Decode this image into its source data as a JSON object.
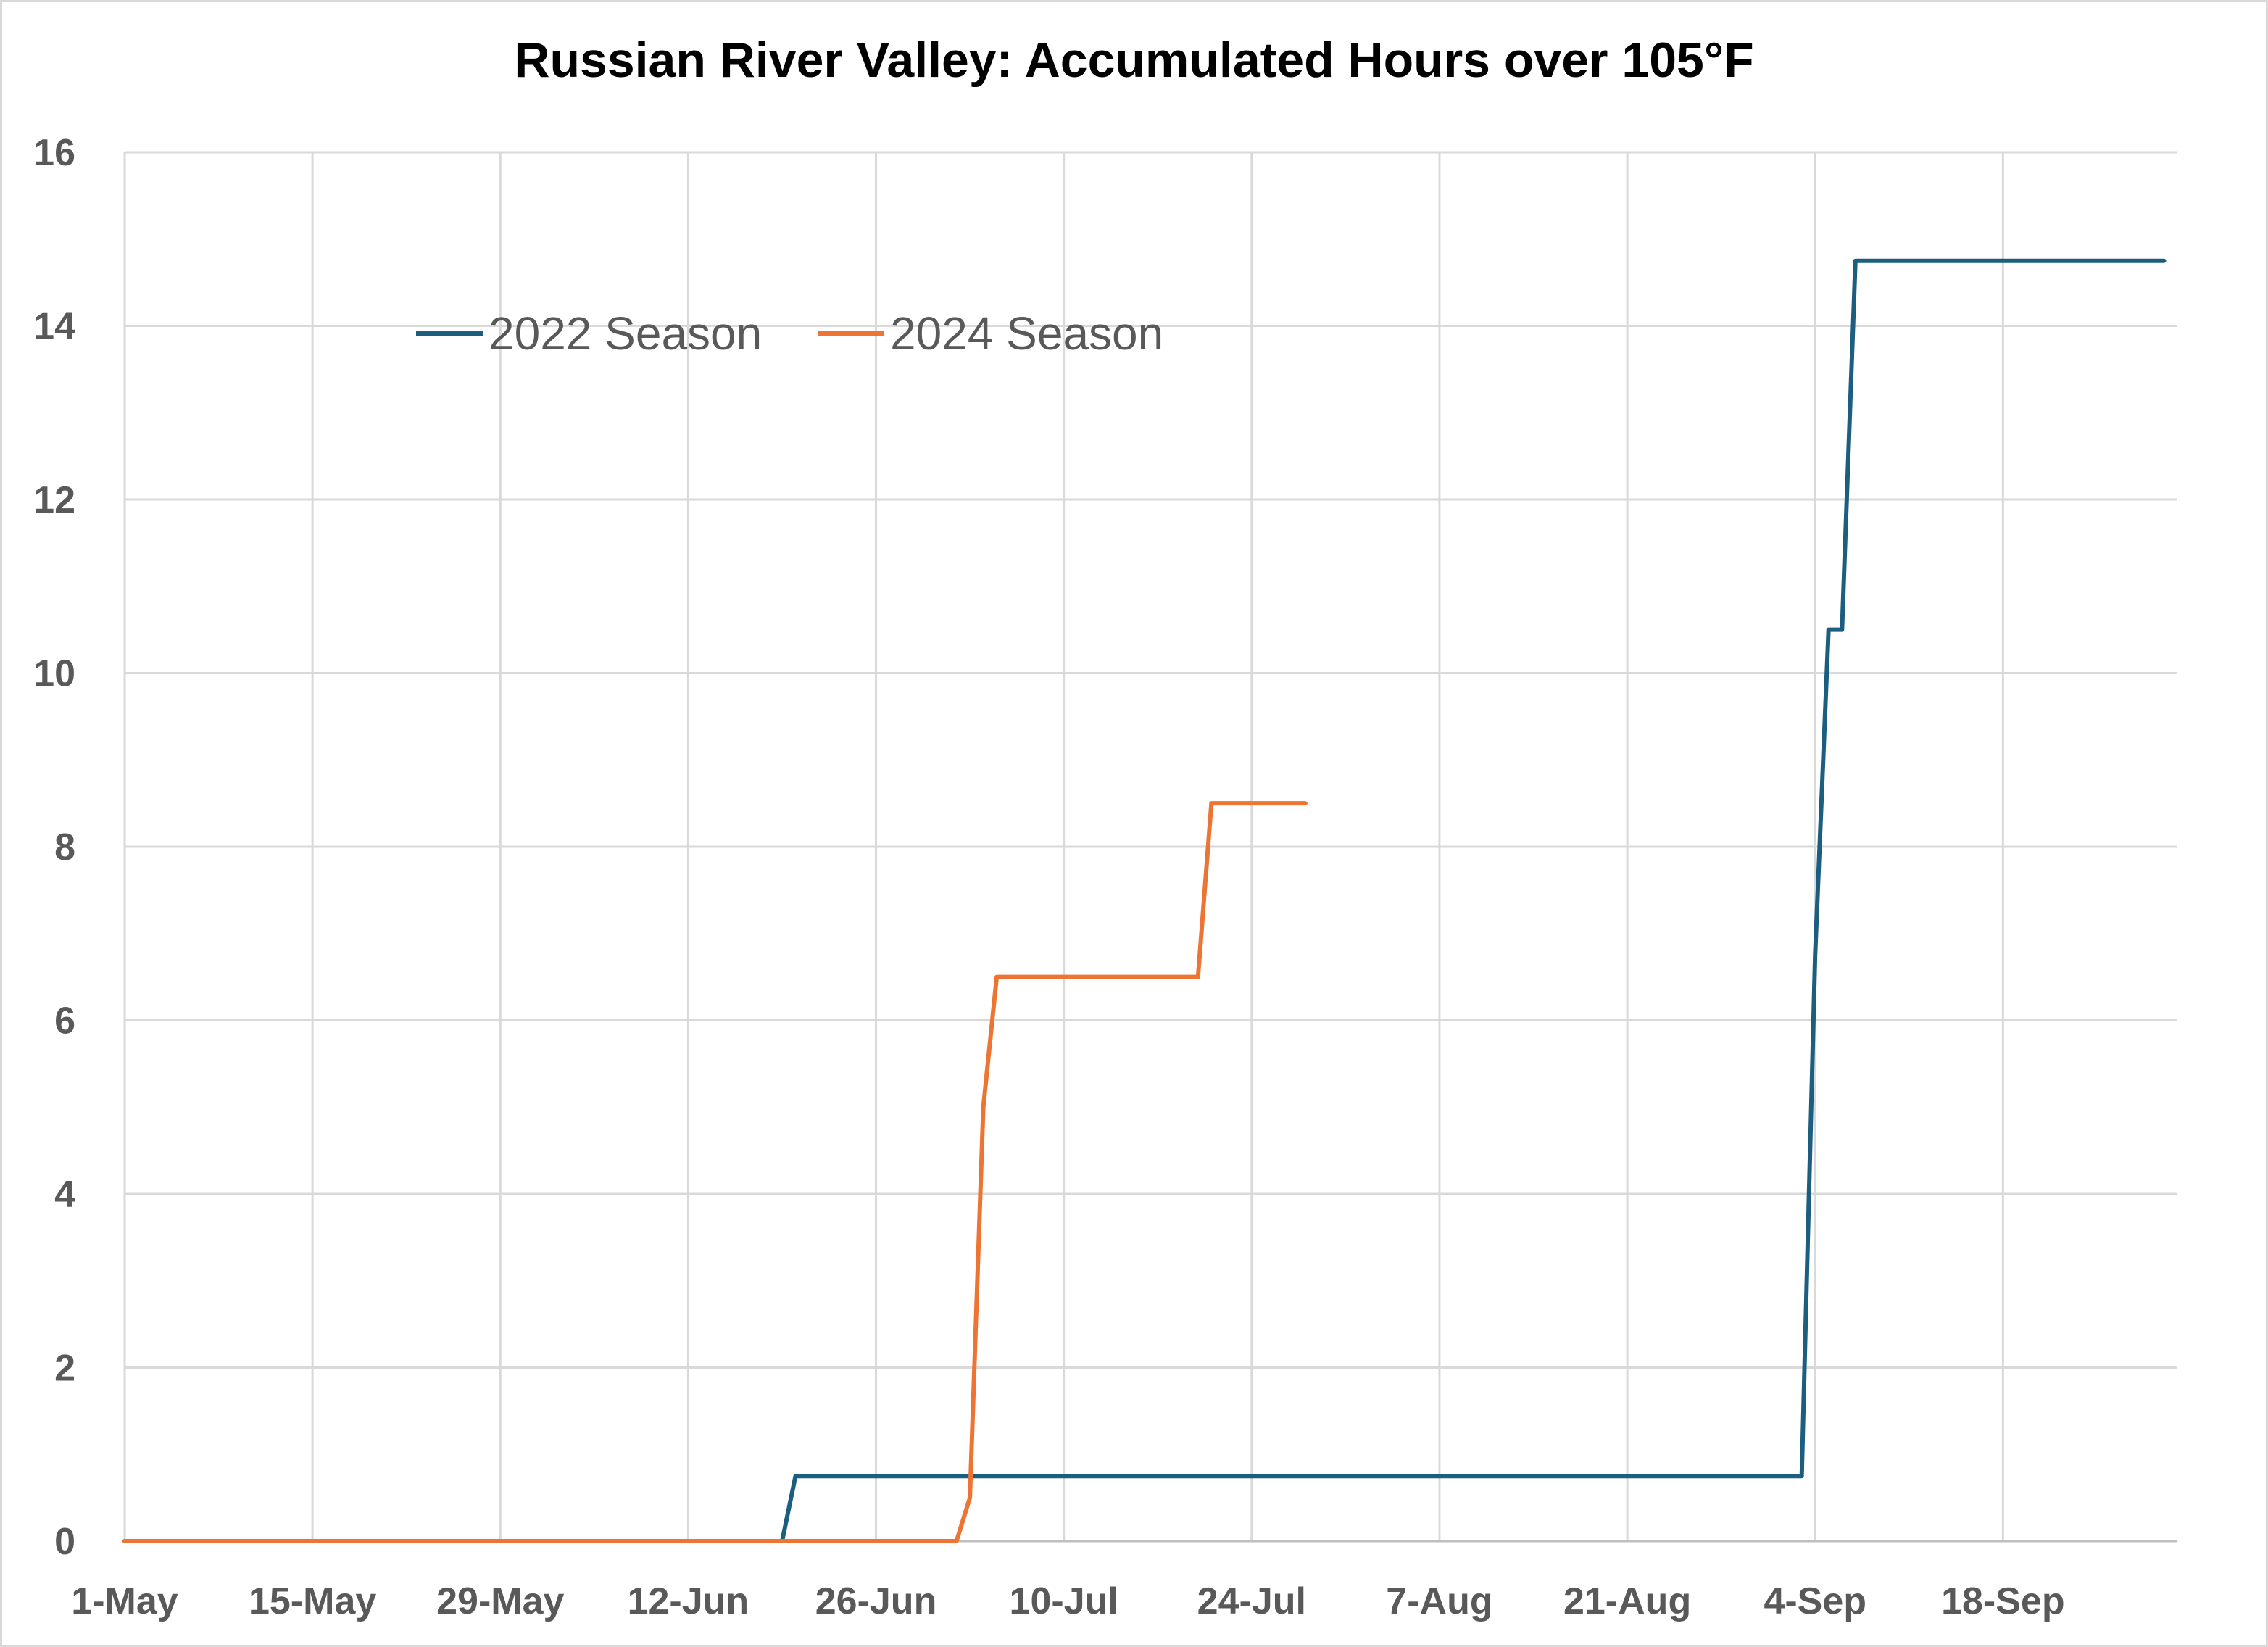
{
  "chart_data": {
    "type": "line",
    "title": "Russian River Valley: Accumulated Hours over 105°F",
    "xlabel": "",
    "ylabel": "",
    "x_axis": {
      "start": "2025-05-01",
      "end": "2025-10-01",
      "tick_labels": [
        "1-May",
        "15-May",
        "29-May",
        "12-Jun",
        "26-Jun",
        "10-Jul",
        "24-Jul",
        "7-Aug",
        "21-Aug",
        "4-Sep",
        "18-Sep"
      ]
    },
    "y_axis": {
      "min": 0,
      "max": 16,
      "tick_labels": [
        "0",
        "2",
        "4",
        "6",
        "8",
        "10",
        "12",
        "14",
        "16"
      ]
    },
    "grid": true,
    "legend_position": "top-left",
    "series": [
      {
        "name": "2022 Season",
        "color": "#1b5e80",
        "points": [
          [
            "2025-05-01",
            0
          ],
          [
            "2025-06-19",
            0
          ],
          [
            "2025-06-20",
            0.75
          ],
          [
            "2025-09-03",
            0.75
          ],
          [
            "2025-09-04",
            6.75
          ],
          [
            "2025-09-05",
            10.5
          ],
          [
            "2025-09-06",
            10.5
          ],
          [
            "2025-09-07",
            14.75
          ],
          [
            "2025-09-30",
            14.75
          ]
        ]
      },
      {
        "name": "2024 Season",
        "color": "#ed7432",
        "points": [
          [
            "2025-05-01",
            0
          ],
          [
            "2025-07-02",
            0
          ],
          [
            "2025-07-03",
            0.5
          ],
          [
            "2025-07-04",
            5
          ],
          [
            "2025-07-05",
            6.5
          ],
          [
            "2025-07-20",
            6.5
          ],
          [
            "2025-07-21",
            8.5
          ],
          [
            "2025-07-28",
            8.5
          ]
        ]
      }
    ]
  }
}
